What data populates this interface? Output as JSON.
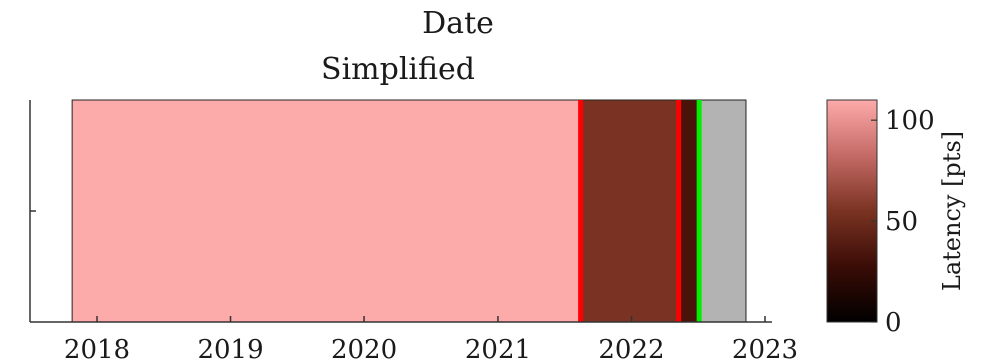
{
  "chart_data": {
    "type": "heatmap",
    "top_label": "Date",
    "title": "Simplified",
    "x_ticks": [
      "2018",
      "2019",
      "2020",
      "2021",
      "2022",
      "2023"
    ],
    "x_range": [
      "2017-10-25",
      "2023-01-10"
    ],
    "segments": [
      {
        "start": "2017-10-25",
        "end": "2021-08-15",
        "value": 110,
        "color": "#fdaaaa"
      },
      {
        "start": "2021-08-15",
        "end": "2022-05-10",
        "value": 40,
        "color": "#7a3322"
      },
      {
        "start": "2022-05-10",
        "end": "2022-07-05",
        "value": 20,
        "color": "#4a1208"
      },
      {
        "start": "2022-07-05",
        "end": "2022-11-10",
        "value": null,
        "color": "#b3b3b3"
      }
    ],
    "events": [
      {
        "date": "2021-08-15",
        "color": "#ff0000"
      },
      {
        "date": "2022-05-10",
        "color": "#ff0000"
      },
      {
        "date": "2022-07-05",
        "color": "#00ee00"
      }
    ],
    "colorbar": {
      "label": "Latency [pts]",
      "range": [
        0,
        110
      ],
      "ticks": [
        "0",
        "50",
        "100"
      ],
      "colors": [
        "#000000",
        "#3a0c06",
        "#7a3322",
        "#c46a66",
        "#fdaaaa"
      ]
    }
  }
}
